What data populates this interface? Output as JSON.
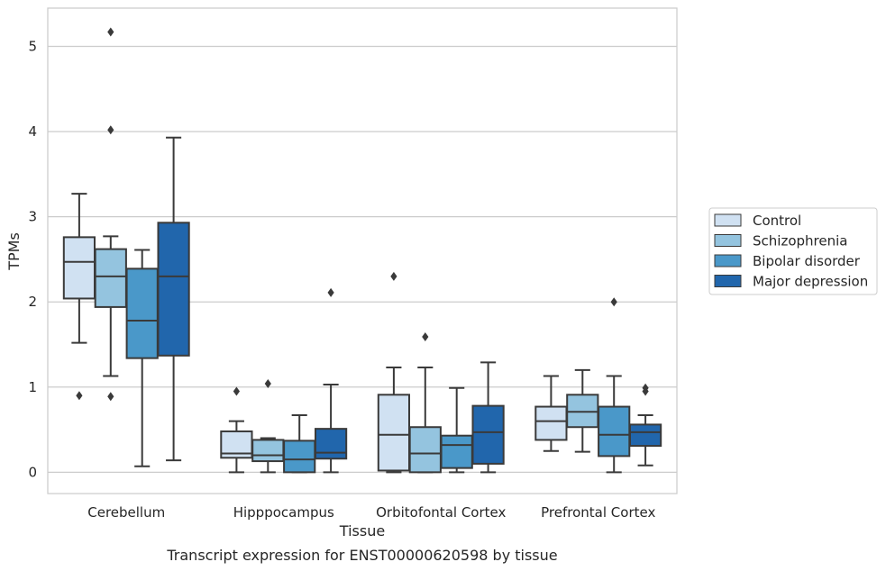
{
  "chart_data": {
    "type": "box",
    "xlabel": "Tissue",
    "ylabel": "TPMs",
    "caption": "Transcript expression for ENST00000620598 by tissue",
    "ylim": [
      -0.25,
      5.45
    ],
    "yticks": [
      "0",
      "1",
      "2",
      "3",
      "4",
      "5"
    ],
    "grid": "horizontal",
    "legend_position": "right",
    "categories": [
      "Cerebellum",
      "Hipppocampus",
      "Orbitofontal Cortex",
      "Prefrontal Cortex"
    ],
    "series": [
      {
        "name": "Control",
        "color": "#d0e1f2",
        "boxes": [
          {
            "whislo": 1.52,
            "q1": 2.04,
            "med": 2.47,
            "q3": 2.76,
            "whishi": 3.27,
            "fliers": [
              0.9
            ]
          },
          {
            "whislo": 0.0,
            "q1": 0.17,
            "med": 0.22,
            "q3": 0.48,
            "whishi": 0.6,
            "fliers": [
              0.95
            ]
          },
          {
            "whislo": 0.0,
            "q1": 0.02,
            "med": 0.44,
            "q3": 0.91,
            "whishi": 1.23,
            "fliers": [
              2.3
            ]
          },
          {
            "whislo": 0.25,
            "q1": 0.38,
            "med": 0.6,
            "q3": 0.77,
            "whishi": 1.13,
            "fliers": []
          }
        ]
      },
      {
        "name": "Schizophrenia",
        "color": "#94c4df",
        "boxes": [
          {
            "whislo": 1.13,
            "q1": 1.94,
            "med": 2.3,
            "q3": 2.62,
            "whishi": 2.77,
            "fliers": [
              0.89,
              4.02,
              5.17
            ]
          },
          {
            "whislo": 0.0,
            "q1": 0.13,
            "med": 0.2,
            "q3": 0.38,
            "whishi": 0.4,
            "fliers": [
              1.04
            ]
          },
          {
            "whislo": 0.0,
            "q1": 0.0,
            "med": 0.22,
            "q3": 0.53,
            "whishi": 1.23,
            "fliers": [
              1.59
            ]
          },
          {
            "whislo": 0.24,
            "q1": 0.53,
            "med": 0.71,
            "q3": 0.91,
            "whishi": 1.2,
            "fliers": []
          }
        ]
      },
      {
        "name": "Bipolar disorder",
        "color": "#4a98c9",
        "boxes": [
          {
            "whislo": 0.07,
            "q1": 1.34,
            "med": 1.78,
            "q3": 2.39,
            "whishi": 2.61,
            "fliers": []
          },
          {
            "whislo": 0.0,
            "q1": 0.0,
            "med": 0.15,
            "q3": 0.37,
            "whishi": 0.67,
            "fliers": []
          },
          {
            "whislo": 0.0,
            "q1": 0.05,
            "med": 0.32,
            "q3": 0.43,
            "whishi": 0.99,
            "fliers": []
          },
          {
            "whislo": 0.0,
            "q1": 0.19,
            "med": 0.44,
            "q3": 0.77,
            "whishi": 1.13,
            "fliers": [
              2.0
            ]
          }
        ]
      },
      {
        "name": "Major depression",
        "color": "#2166ac",
        "boxes": [
          {
            "whislo": 0.14,
            "q1": 1.37,
            "med": 2.3,
            "q3": 2.93,
            "whishi": 3.93,
            "fliers": []
          },
          {
            "whislo": 0.0,
            "q1": 0.16,
            "med": 0.23,
            "q3": 0.51,
            "whishi": 1.03,
            "fliers": [
              2.11
            ]
          },
          {
            "whislo": 0.0,
            "q1": 0.1,
            "med": 0.47,
            "q3": 0.78,
            "whishi": 1.29,
            "fliers": []
          },
          {
            "whislo": 0.08,
            "q1": 0.31,
            "med": 0.47,
            "q3": 0.56,
            "whishi": 0.67,
            "fliers": [
              0.95,
              0.99
            ]
          }
        ]
      }
    ],
    "colors": {
      "box_edge": "#3a3a3a",
      "grid": "#cccccc",
      "spine": "#cccccc"
    }
  }
}
